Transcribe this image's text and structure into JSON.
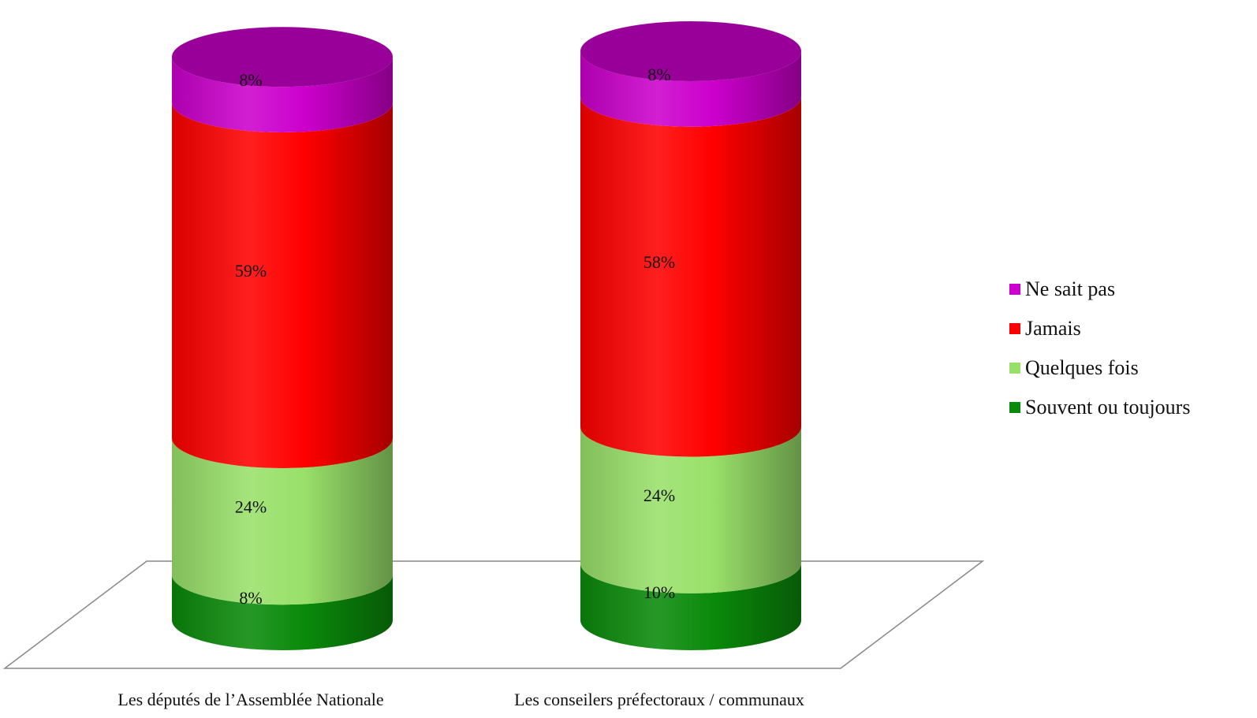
{
  "chart_data": {
    "type": "bar",
    "stacked": true,
    "style": "3d-cylinder",
    "categories": [
      "Les députés de l’Assemblée Nationale",
      "Les conseilers préfectoraux / communaux"
    ],
    "series": [
      {
        "name": "Souvent ou toujours",
        "color": "#0a8a0a",
        "values": [
          8,
          10
        ],
        "labels": [
          "8%",
          "10%"
        ]
      },
      {
        "name": "Quelques fois",
        "color": "#99e06a",
        "values": [
          24,
          24
        ],
        "labels": [
          "24%",
          "24%"
        ]
      },
      {
        "name": "Jamais",
        "color": "#ff0000",
        "values": [
          59,
          58
        ],
        "labels": [
          "59%",
          "58%"
        ]
      },
      {
        "name": "Ne sait pas",
        "color": "#cc00cc",
        "values": [
          8,
          8
        ],
        "labels": [
          "8%",
          "8%"
        ]
      }
    ],
    "legend": {
      "placement": "right",
      "order": [
        "Ne sait pas",
        "Jamais",
        "Quelques fois",
        "Souvent ou toujours"
      ]
    },
    "title": "",
    "xlabel": "",
    "ylabel": "",
    "grid": false
  }
}
